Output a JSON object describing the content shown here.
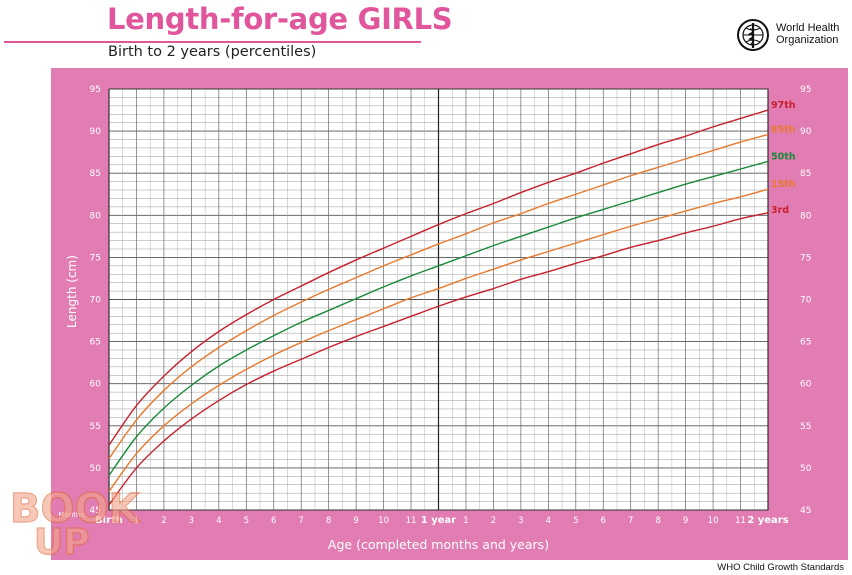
{
  "header": {
    "title": "Length-for-age GIRLS",
    "subtitle": "Birth to 2 years (percentiles)",
    "logo_line1": "World Health",
    "logo_line2": "Organization"
  },
  "footer": {
    "source": "WHO Child Growth Standards"
  },
  "watermark": {
    "text_top": "BOOK",
    "text_bottom": "UP"
  },
  "colors": {
    "panel": "#e17db2",
    "title": "#e0559b",
    "p3": "#c8202f",
    "p15": "#e8792f",
    "p50": "#1a8a3a",
    "p85": "#e8792f",
    "p97": "#c8202f"
  },
  "chart_data": {
    "type": "line",
    "title": "Length-for-age GIRLS",
    "subtitle": "Birth to 2 years (percentiles)",
    "xlabel": "Age (completed months and years)",
    "ylabel": "Length (cm)",
    "xlim": [
      0,
      24
    ],
    "ylim": [
      45,
      95
    ],
    "y_ticks": [
      45,
      50,
      55,
      60,
      65,
      70,
      75,
      80,
      85,
      90,
      95
    ],
    "months_label": "Months",
    "x_tick_labels": [
      "Birth",
      "1",
      "2",
      "3",
      "4",
      "5",
      "6",
      "7",
      "8",
      "9",
      "10",
      "11",
      "1 year",
      "1",
      "2",
      "3",
      "4",
      "5",
      "6",
      "7",
      "8",
      "9",
      "10",
      "11",
      "2 years"
    ],
    "grid": true,
    "x": [
      0,
      1,
      2,
      3,
      4,
      5,
      6,
      7,
      8,
      9,
      10,
      11,
      12,
      13,
      14,
      15,
      16,
      17,
      18,
      19,
      20,
      21,
      22,
      23,
      24
    ],
    "series": [
      {
        "name": "3rd",
        "color_key": "p3",
        "values": [
          45.6,
          50.0,
          53.2,
          55.8,
          58.0,
          59.9,
          61.5,
          62.9,
          64.3,
          65.6,
          66.8,
          68.0,
          69.2,
          70.3,
          71.3,
          72.4,
          73.3,
          74.3,
          75.2,
          76.2,
          77.0,
          77.9,
          78.7,
          79.6,
          80.3
        ]
      },
      {
        "name": "15th",
        "color_key": "p15",
        "values": [
          47.2,
          51.7,
          55.0,
          57.6,
          59.8,
          61.7,
          63.4,
          64.9,
          66.3,
          67.6,
          68.9,
          70.2,
          71.3,
          72.5,
          73.6,
          74.7,
          75.7,
          76.7,
          77.7,
          78.7,
          79.6,
          80.5,
          81.4,
          82.2,
          83.1
        ]
      },
      {
        "name": "50th",
        "color_key": "p50",
        "values": [
          49.1,
          53.7,
          57.1,
          59.8,
          62.1,
          64.0,
          65.7,
          67.3,
          68.7,
          70.1,
          71.5,
          72.8,
          74.0,
          75.2,
          76.4,
          77.5,
          78.6,
          79.7,
          80.7,
          81.7,
          82.7,
          83.7,
          84.6,
          85.5,
          86.4
        ]
      },
      {
        "name": "85th",
        "color_key": "p85",
        "values": [
          51.1,
          55.7,
          59.2,
          62.0,
          64.3,
          66.3,
          68.1,
          69.7,
          71.2,
          72.6,
          74.0,
          75.3,
          76.6,
          77.8,
          79.1,
          80.2,
          81.4,
          82.5,
          83.6,
          84.7,
          85.7,
          86.7,
          87.7,
          88.7,
          89.6
        ]
      },
      {
        "name": "97th",
        "color_key": "p97",
        "values": [
          52.7,
          57.4,
          60.9,
          63.8,
          66.2,
          68.2,
          70.0,
          71.6,
          73.2,
          74.7,
          76.1,
          77.5,
          78.9,
          80.2,
          81.4,
          82.7,
          83.9,
          85.0,
          86.2,
          87.3,
          88.4,
          89.4,
          90.5,
          91.5,
          92.5
        ]
      }
    ]
  }
}
